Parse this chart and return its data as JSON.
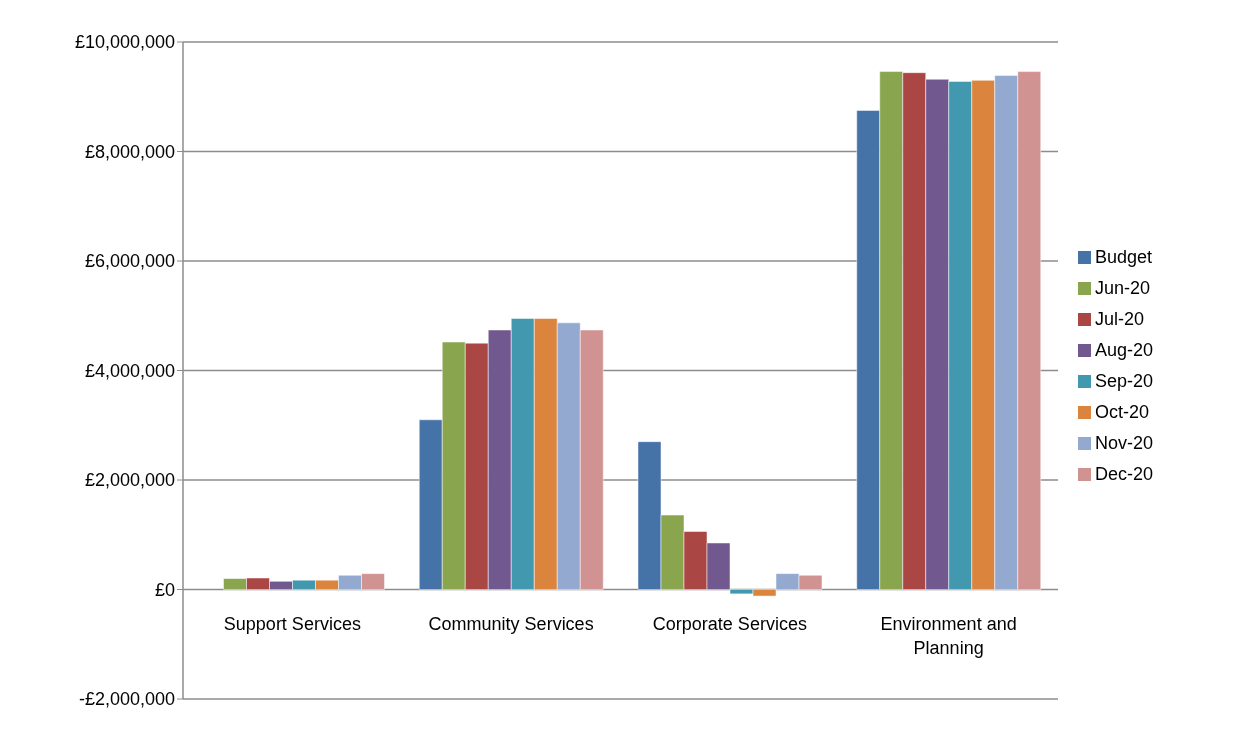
{
  "chart_data": {
    "type": "bar",
    "categories": [
      "Support Services",
      "Community Services",
      "Corporate Services",
      "Environment and Planning"
    ],
    "series": [
      {
        "name": "Budget",
        "color": "#4572a7",
        "values": [
          null,
          3100000,
          2700000,
          8750000
        ]
      },
      {
        "name": "Jun-20",
        "color": "#89a54e",
        "values": [
          200000,
          4520000,
          1360000,
          9460000
        ]
      },
      {
        "name": "Jul-20",
        "color": "#aa4643",
        "values": [
          210000,
          4500000,
          1060000,
          9440000
        ]
      },
      {
        "name": "Aug-20",
        "color": "#71588f",
        "values": [
          150000,
          4740000,
          850000,
          9320000
        ]
      },
      {
        "name": "Sep-20",
        "color": "#4198af",
        "values": [
          170000,
          4950000,
          -80000,
          9280000
        ]
      },
      {
        "name": "Oct-20",
        "color": "#db843d",
        "values": [
          170000,
          4950000,
          -120000,
          9300000
        ]
      },
      {
        "name": "Nov-20",
        "color": "#93a9cf",
        "values": [
          260000,
          4870000,
          290000,
          9390000
        ]
      },
      {
        "name": "Dec-20",
        "color": "#d19392",
        "values": [
          290000,
          4740000,
          260000,
          9460000
        ]
      }
    ],
    "ylim": [
      -2000000,
      10000000
    ],
    "yticks": [
      {
        "value": -2000000,
        "label": "-£2,000,000"
      },
      {
        "value": 0,
        "label": "£0"
      },
      {
        "value": 2000000,
        "label": "£2,000,000"
      },
      {
        "value": 4000000,
        "label": "£4,000,000"
      },
      {
        "value": 6000000,
        "label": "£6,000,000"
      },
      {
        "value": 8000000,
        "label": "£8,000,000"
      },
      {
        "value": 10000000,
        "label": "£10,000,000"
      }
    ],
    "grid": "y",
    "legend": "right"
  }
}
